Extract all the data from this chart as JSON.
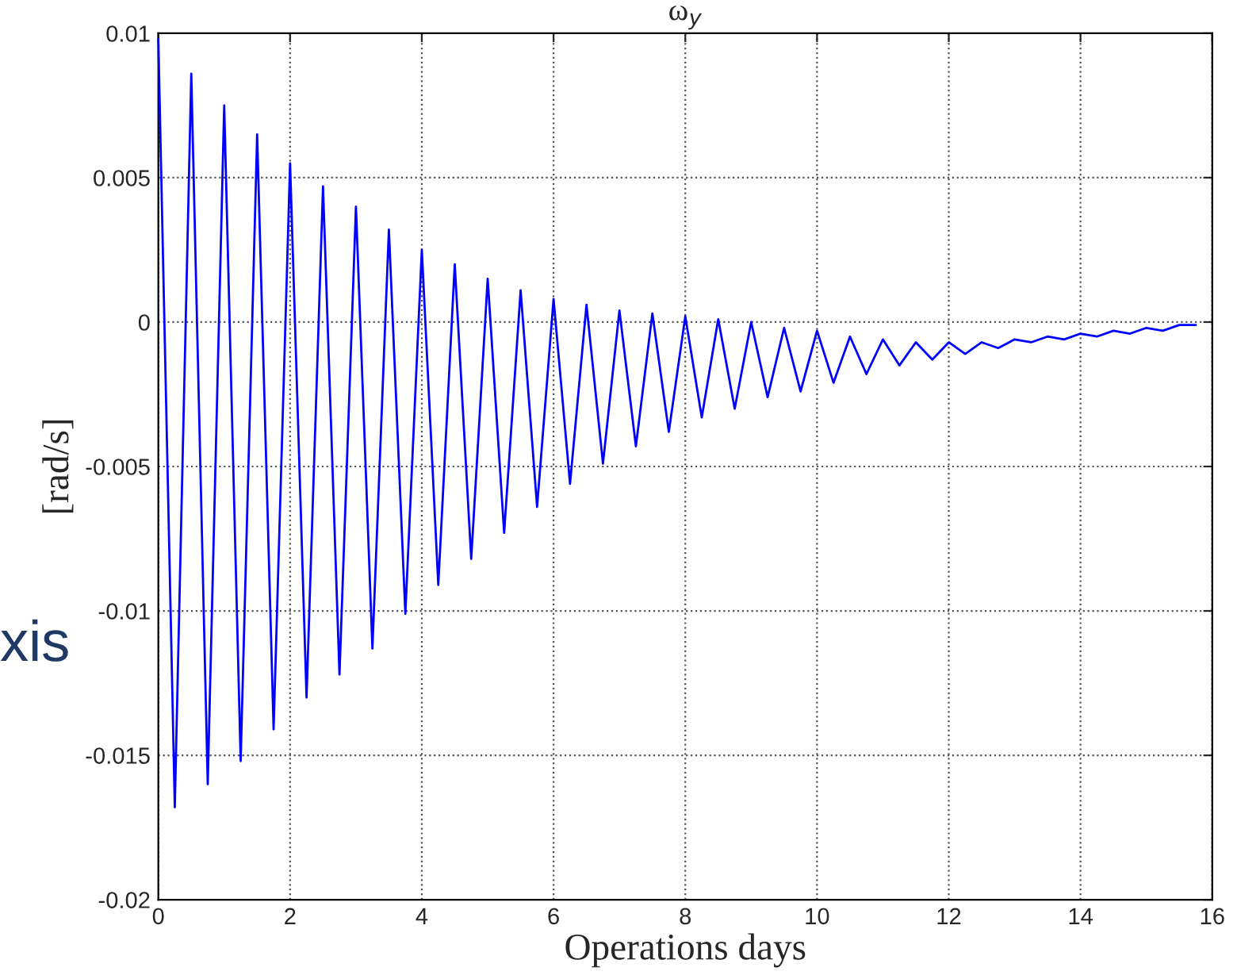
{
  "chart_data": {
    "type": "line",
    "title": "ω$_{y}$",
    "xlabel": "Operations days",
    "ylabel": "[rad/s]",
    "annotations": [
      "xis"
    ],
    "x": [
      0,
      0.25,
      0.5,
      0.75,
      1,
      1.25,
      1.5,
      1.75,
      2,
      2.25,
      2.5,
      2.75,
      3,
      3.25,
      3.5,
      3.75,
      4,
      4.25,
      4.5,
      4.75,
      5,
      5.25,
      5.5,
      5.75,
      6,
      6.25,
      6.5,
      6.75,
      7,
      7.25,
      7.5,
      7.75,
      8,
      8.25,
      8.5,
      8.75,
      9,
      9.25,
      9.5,
      9.75,
      10,
      10.25,
      10.5,
      10.75,
      11,
      11.25,
      11.5,
      11.75,
      12,
      12.25,
      12.5,
      12.75,
      13,
      13.25,
      13.5,
      13.75,
      14,
      14.25,
      14.5,
      14.75,
      15,
      15.25,
      15.5,
      15.75
    ],
    "series": [
      {
        "color": "#0000ff",
        "values": [
          0.0098,
          -0.0168,
          0.0086,
          -0.016,
          0.0075,
          -0.0152,
          0.0065,
          -0.0141,
          0.0055,
          -0.013,
          0.0047,
          -0.0122,
          0.004,
          -0.0113,
          0.0032,
          -0.0101,
          0.0025,
          -0.0091,
          0.002,
          -0.0082,
          0.0015,
          -0.0073,
          0.0011,
          -0.0064,
          0.0008,
          -0.0056,
          0.0006,
          -0.0049,
          0.0004,
          -0.0043,
          0.0003,
          -0.0038,
          0.0002,
          -0.0033,
          0.0001,
          -0.003,
          0.0,
          -0.0026,
          -0.0002,
          -0.0024,
          -0.0003,
          -0.0021,
          -0.0005,
          -0.0018,
          -0.0006,
          -0.0015,
          -0.0007,
          -0.0013,
          -0.0007,
          -0.0011,
          -0.0007,
          -0.0009,
          -0.0006,
          -0.0007,
          -0.0005,
          -0.0006,
          -0.0004,
          -0.0005,
          -0.0003,
          -0.0004,
          -0.0002,
          -0.0003,
          -0.0001,
          -0.0001
        ]
      }
    ],
    "xlim": [
      0,
      16
    ],
    "xticks": [
      0,
      2,
      4,
      6,
      8,
      10,
      12,
      14,
      16
    ],
    "ylim": [
      -0.02,
      0.01
    ],
    "yticks": [
      -0.02,
      -0.015,
      -0.01,
      -0.005,
      0,
      0.005,
      0.01
    ],
    "grid": true,
    "line_style": "solid",
    "marker": "none",
    "legend": false
  }
}
